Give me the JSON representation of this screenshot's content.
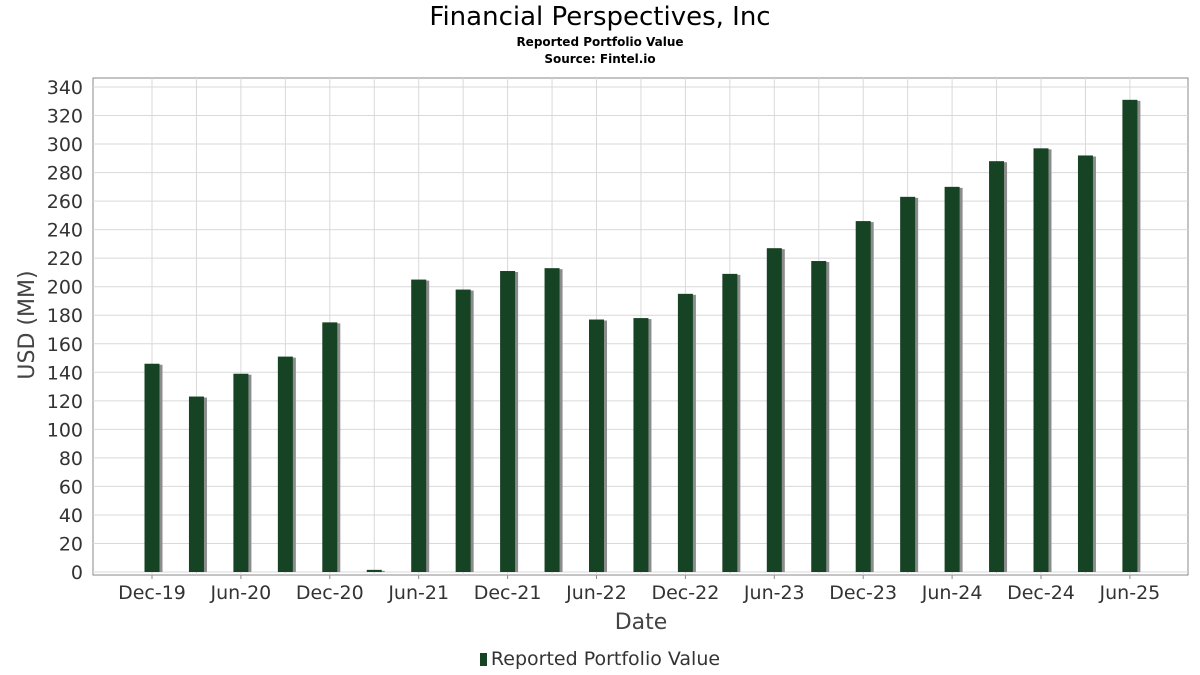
{
  "chart_data": {
    "type": "bar",
    "title": "Financial Perspectives, Inc",
    "subtitle": "Reported Portfolio Value",
    "source": "Source: Fintel.io",
    "xlabel": "Date",
    "ylabel": "USD (MM)",
    "ylim": [
      0,
      340
    ],
    "y_ticks": [
      0,
      20,
      40,
      60,
      80,
      100,
      120,
      140,
      160,
      180,
      200,
      220,
      240,
      260,
      280,
      300,
      320,
      340
    ],
    "x_tick_labels": [
      "Dec-19",
      "Jun-20",
      "Dec-20",
      "Jun-21",
      "Dec-21",
      "Jun-22",
      "Dec-22",
      "Jun-23",
      "Dec-23",
      "Jun-24",
      "Dec-24",
      "Jun-25"
    ],
    "categories": [
      "Dec-19",
      "Mar-20",
      "Jun-20",
      "Sep-20",
      "Dec-20",
      "Mar-21",
      "Jun-21",
      "Sep-21",
      "Dec-21",
      "Mar-22",
      "Jun-22",
      "Sep-22",
      "Dec-22",
      "Mar-23",
      "Jun-23",
      "Sep-23",
      "Dec-23",
      "Mar-24",
      "Jun-24",
      "Sep-24",
      "Dec-24",
      "Mar-25",
      "Jun-25"
    ],
    "series": [
      {
        "name": "Reported Portfolio Value",
        "values": [
          146,
          123,
          139,
          151,
          175,
          1.5,
          205,
          198,
          211,
          213,
          177,
          178,
          195,
          209,
          227,
          218,
          246,
          263,
          270,
          288,
          297,
          292,
          331
        ]
      }
    ],
    "grid": true,
    "legend_position": "bottom",
    "colors": {
      "bar": "#174325",
      "shadow": "#8c8c8c",
      "grid": "#d9d9d9",
      "frame": "#8a8a8a"
    }
  }
}
